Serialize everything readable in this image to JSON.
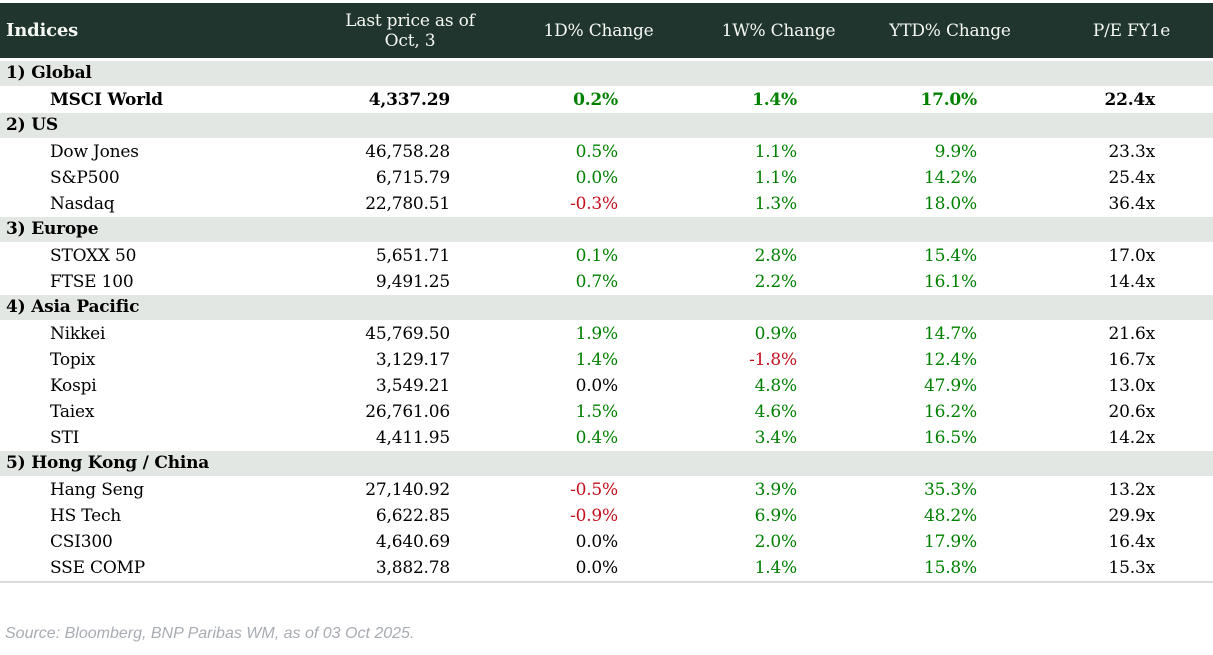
{
  "chart_data": {
    "type": "table",
    "title": "Indices",
    "columns": [
      "Indices",
      "Last price as of Oct, 3",
      "1D% Change",
      "1W% Change",
      "YTD% Change",
      "P/E FY1e"
    ],
    "sections": [
      {
        "label": "1) Global",
        "rows": [
          {
            "name": "MSCI World",
            "bold": true,
            "last": "4,337.29",
            "d1": "0.2%",
            "d1_dir": "up",
            "w1": "1.4%",
            "w1_dir": "up",
            "ytd": "17.0%",
            "ytd_dir": "up",
            "pe": "22.4x"
          }
        ]
      },
      {
        "label": "2) US",
        "rows": [
          {
            "name": "Dow Jones",
            "last": "46,758.28",
            "d1": "0.5%",
            "d1_dir": "up",
            "w1": "1.1%",
            "w1_dir": "up",
            "ytd": "9.9%",
            "ytd_dir": "up",
            "pe": "23.3x"
          },
          {
            "name": "S&P500",
            "last": "6,715.79",
            "d1": "0.0%",
            "d1_dir": "up",
            "w1": "1.1%",
            "w1_dir": "up",
            "ytd": "14.2%",
            "ytd_dir": "up",
            "pe": "25.4x"
          },
          {
            "name": "Nasdaq",
            "last": "22,780.51",
            "d1": "-0.3%",
            "d1_dir": "down",
            "w1": "1.3%",
            "w1_dir": "up",
            "ytd": "18.0%",
            "ytd_dir": "up",
            "pe": "36.4x"
          }
        ]
      },
      {
        "label": "3) Europe",
        "rows": [
          {
            "name": "STOXX 50",
            "last": "5,651.71",
            "d1": "0.1%",
            "d1_dir": "up",
            "w1": "2.8%",
            "w1_dir": "up",
            "ytd": "15.4%",
            "ytd_dir": "up",
            "pe": "17.0x"
          },
          {
            "name": "FTSE 100",
            "last": "9,491.25",
            "d1": "0.7%",
            "d1_dir": "up",
            "w1": "2.2%",
            "w1_dir": "up",
            "ytd": "16.1%",
            "ytd_dir": "up",
            "pe": "14.4x"
          }
        ]
      },
      {
        "label": "4) Asia Pacific",
        "rows": [
          {
            "name": "Nikkei",
            "last": "45,769.50",
            "d1": "1.9%",
            "d1_dir": "up",
            "w1": "0.9%",
            "w1_dir": "up",
            "ytd": "14.7%",
            "ytd_dir": "up",
            "pe": "21.6x"
          },
          {
            "name": "Topix",
            "last": "3,129.17",
            "d1": "1.4%",
            "d1_dir": "up",
            "w1": "-1.8%",
            "w1_dir": "down",
            "ytd": "12.4%",
            "ytd_dir": "up",
            "pe": "16.7x"
          },
          {
            "name": "Kospi",
            "last": "3,549.21",
            "d1": "0.0%",
            "d1_dir": "flat",
            "w1": "4.8%",
            "w1_dir": "up",
            "ytd": "47.9%",
            "ytd_dir": "up",
            "pe": "13.0x"
          },
          {
            "name": "Taiex",
            "last": "26,761.06",
            "d1": "1.5%",
            "d1_dir": "up",
            "w1": "4.6%",
            "w1_dir": "up",
            "ytd": "16.2%",
            "ytd_dir": "up",
            "pe": "20.6x"
          },
          {
            "name": "STI",
            "last": "4,411.95",
            "d1": "0.4%",
            "d1_dir": "up",
            "w1": "3.4%",
            "w1_dir": "up",
            "ytd": "16.5%",
            "ytd_dir": "up",
            "pe": "14.2x"
          }
        ]
      },
      {
        "label": "5) Hong Kong / China",
        "rows": [
          {
            "name": "Hang Seng",
            "last": "27,140.92",
            "d1": "-0.5%",
            "d1_dir": "down",
            "w1": "3.9%",
            "w1_dir": "up",
            "ytd": "35.3%",
            "ytd_dir": "up",
            "pe": "13.2x"
          },
          {
            "name": "HS Tech",
            "last": "6,622.85",
            "d1": "-0.9%",
            "d1_dir": "down",
            "w1": "6.9%",
            "w1_dir": "up",
            "ytd": "48.2%",
            "ytd_dir": "up",
            "pe": "29.9x"
          },
          {
            "name": "CSI300",
            "last": "4,640.69",
            "d1": "0.0%",
            "d1_dir": "flat",
            "w1": "2.0%",
            "w1_dir": "up",
            "ytd": "17.9%",
            "ytd_dir": "up",
            "pe": "16.4x"
          },
          {
            "name": "SSE COMP",
            "last": "3,882.78",
            "d1": "0.0%",
            "d1_dir": "flat",
            "w1": "1.4%",
            "w1_dir": "up",
            "ytd": "15.8%",
            "ytd_dir": "up",
            "pe": "15.3x"
          }
        ]
      }
    ]
  },
  "footer": {
    "source": "Source: Bloomberg, BNP Paribas WM, as of 03 Oct 2025."
  },
  "colors": {
    "header_bg": "#20352d",
    "section_bg": "#e3e7e3",
    "positive": "#008000",
    "negative": "#c40f1e",
    "text": "#000000",
    "source_text": "#a7acb2"
  }
}
